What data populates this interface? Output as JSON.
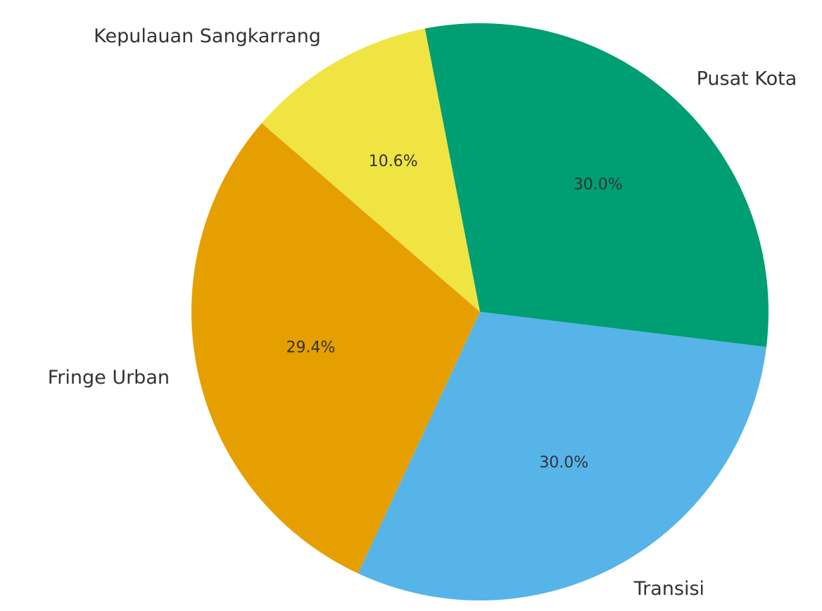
{
  "chart_data": {
    "type": "pie",
    "categories": [
      "Pusat Kota",
      "Transisi",
      "Fringe Urban",
      "Kepulauan Sangkarrang"
    ],
    "values": [
      30.0,
      30.0,
      29.4,
      10.6
    ],
    "value_labels": [
      "30.0%",
      "30.0%",
      "29.4%",
      "10.6%"
    ],
    "colors": [
      "#009e73",
      "#56b4e9",
      "#e69f00",
      "#f0e442"
    ]
  }
}
